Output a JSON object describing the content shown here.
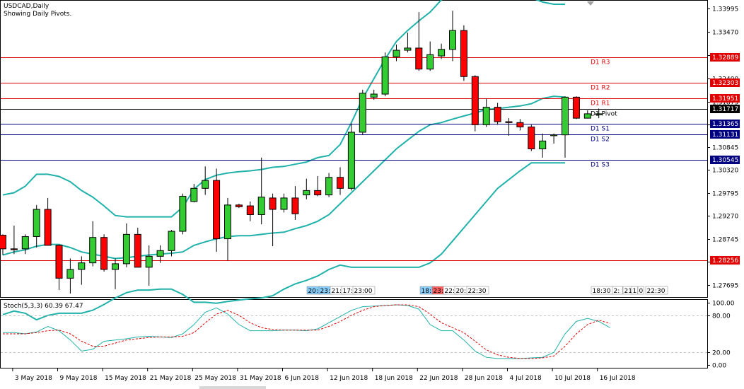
{
  "main": {
    "symbol": "USDCAD,Daily",
    "subtitle": "Showing Daily Pivots."
  },
  "stoch": {
    "label": "Stoch(5,3,3) 60.39 67.47",
    "k": 60.39,
    "d": 67.47
  },
  "colors": {
    "bull": "#33cc33",
    "bear": "#ff0000",
    "bands": "#20b2aa",
    "resistance": "#e00000",
    "support": "#000080",
    "pivot": "#000000",
    "stoch_main": "#20b2aa",
    "stoch_signal": "#e00000"
  },
  "session_tags": [
    {
      "text": "20:",
      "color": "#87cefa"
    },
    {
      "text": "23:",
      "color": "#87cefa"
    },
    {
      "text": "21:",
      "color": "#ffffff"
    },
    {
      "text": "17:",
      "color": "#ffffff"
    },
    {
      "text": "23:00",
      "color": "#ffffff"
    },
    {
      "text": "18:",
      "color": "#87cefa"
    },
    {
      "text": "23:",
      "color": "#ff6060"
    },
    {
      "text": "22:",
      "color": "#ffffff"
    },
    {
      "text": "20:",
      "color": "#ffffff"
    },
    {
      "text": "22:30",
      "color": "#ffffff"
    },
    {
      "text": "18:30",
      "color": "#ffffff"
    },
    {
      "text": "2:",
      "color": "#ffffff"
    },
    {
      "text": "21",
      "color": "#ffffff"
    },
    {
      "text": "1",
      "color": "#ffffff"
    },
    {
      "text": "0",
      "color": "#ffffff"
    },
    {
      "text": "22:30",
      "color": "#ffffff"
    }
  ],
  "chart_data": [
    {
      "type": "candlestick",
      "title": "USDCAD,Daily",
      "subtitle": "Showing Daily Pivots.",
      "ylim": [
        1.2742,
        1.3418
      ],
      "y_ticks": [
        1.33995,
        1.3347,
        1.3294,
        1.324,
        1.31875,
        1.3135,
        1.30845,
        1.3032,
        1.29795,
        1.2927,
        1.28745,
        1.2822,
        1.27695
      ],
      "x_labels": [
        "3 May 2018",
        "9 May 2018",
        "15 May 2018",
        "21 May 2018",
        "25 May 2018",
        "31 May 2018",
        "6 Jun 2018",
        "12 Jun 2018",
        "18 Jun 2018",
        "22 Jun 2018",
        "28 Jun 2018",
        "4 Jul 2018",
        "10 Jul 2018",
        "16 Jul 2018"
      ],
      "x_label_bars": [
        1,
        5,
        9,
        13,
        17,
        21,
        25,
        29,
        33,
        37,
        41,
        45,
        49,
        53
      ],
      "candles": [
        {
          "o": 1.2883,
          "h": 1.2885,
          "l": 1.2838,
          "c": 1.2852
        },
        {
          "o": 1.2852,
          "h": 1.2905,
          "l": 1.284,
          "c": 1.285
        },
        {
          "o": 1.2852,
          "h": 1.2885,
          "l": 1.284,
          "c": 1.288
        },
        {
          "o": 1.288,
          "h": 1.2952,
          "l": 1.2855,
          "c": 1.2942
        },
        {
          "o": 1.2942,
          "h": 1.2968,
          "l": 1.286,
          "c": 1.286
        },
        {
          "o": 1.286,
          "h": 1.2862,
          "l": 1.2758,
          "c": 1.2785
        },
        {
          "o": 1.2785,
          "h": 1.283,
          "l": 1.275,
          "c": 1.2805
        },
        {
          "o": 1.2805,
          "h": 1.2835,
          "l": 1.277,
          "c": 1.282
        },
        {
          "o": 1.282,
          "h": 1.2915,
          "l": 1.2812,
          "c": 1.2878
        },
        {
          "o": 1.2878,
          "h": 1.2885,
          "l": 1.28,
          "c": 1.2805
        },
        {
          "o": 1.2805,
          "h": 1.283,
          "l": 1.276,
          "c": 1.2818
        },
        {
          "o": 1.2818,
          "h": 1.291,
          "l": 1.281,
          "c": 1.2885
        },
        {
          "o": 1.2885,
          "h": 1.29,
          "l": 1.281,
          "c": 1.281
        },
        {
          "o": 1.281,
          "h": 1.286,
          "l": 1.2768,
          "c": 1.2835
        },
        {
          "o": 1.2835,
          "h": 1.286,
          "l": 1.282,
          "c": 1.2848
        },
        {
          "o": 1.2848,
          "h": 1.2895,
          "l": 1.2835,
          "c": 1.2892
        },
        {
          "o": 1.2892,
          "h": 1.2978,
          "l": 1.2885,
          "c": 1.2972
        },
        {
          "o": 1.296,
          "h": 1.3,
          "l": 1.2958,
          "c": 1.299
        },
        {
          "o": 1.299,
          "h": 1.304,
          "l": 1.2975,
          "c": 1.3008
        },
        {
          "o": 1.3008,
          "h": 1.3035,
          "l": 1.2845,
          "c": 1.2875
        },
        {
          "o": 1.2875,
          "h": 1.2968,
          "l": 1.2825,
          "c": 1.2952
        },
        {
          "o": 1.2952,
          "h": 1.2955,
          "l": 1.2945,
          "c": 1.2948
        },
        {
          "o": 1.295,
          "h": 1.296,
          "l": 1.2915,
          "c": 1.293
        },
        {
          "o": 1.293,
          "h": 1.306,
          "l": 1.2908,
          "c": 1.297
        },
        {
          "o": 1.2968,
          "h": 1.2978,
          "l": 1.2858,
          "c": 1.2942
        },
        {
          "o": 1.2942,
          "h": 1.2978,
          "l": 1.2935,
          "c": 1.2968
        },
        {
          "o": 1.2968,
          "h": 1.2995,
          "l": 1.2918,
          "c": 1.2932
        },
        {
          "o": 1.2975,
          "h": 1.3012,
          "l": 1.2965,
          "c": 1.2985
        },
        {
          "o": 1.2985,
          "h": 1.3018,
          "l": 1.2972,
          "c": 1.2975
        },
        {
          "o": 1.2975,
          "h": 1.3025,
          "l": 1.297,
          "c": 1.3015
        },
        {
          "o": 1.3015,
          "h": 1.3038,
          "l": 1.2975,
          "c": 1.299
        },
        {
          "o": 1.299,
          "h": 1.3138,
          "l": 1.2985,
          "c": 1.3118
        },
        {
          "o": 1.3118,
          "h": 1.3215,
          "l": 1.3112,
          "c": 1.3207
        },
        {
          "o": 1.3198,
          "h": 1.3215,
          "l": 1.3192,
          "c": 1.3205
        },
        {
          "o": 1.3205,
          "h": 1.33,
          "l": 1.32,
          "c": 1.329
        },
        {
          "o": 1.329,
          "h": 1.3318,
          "l": 1.328,
          "c": 1.3305
        },
        {
          "o": 1.3305,
          "h": 1.3345,
          "l": 1.33,
          "c": 1.331
        },
        {
          "o": 1.331,
          "h": 1.3392,
          "l": 1.3258,
          "c": 1.3262
        },
        {
          "o": 1.3262,
          "h": 1.3325,
          "l": 1.3258,
          "c": 1.3295
        },
        {
          "o": 1.3292,
          "h": 1.332,
          "l": 1.3285,
          "c": 1.3307
        },
        {
          "o": 1.3307,
          "h": 1.3395,
          "l": 1.328,
          "c": 1.335
        },
        {
          "o": 1.335,
          "h": 1.3362,
          "l": 1.3235,
          "c": 1.3245
        },
        {
          "o": 1.3245,
          "h": 1.3248,
          "l": 1.312,
          "c": 1.3135
        },
        {
          "o": 1.3135,
          "h": 1.3195,
          "l": 1.313,
          "c": 1.3175
        },
        {
          "o": 1.3175,
          "h": 1.3185,
          "l": 1.3135,
          "c": 1.3142
        },
        {
          "o": 1.3142,
          "h": 1.315,
          "l": 1.311,
          "c": 1.314
        },
        {
          "o": 1.314,
          "h": 1.3148,
          "l": 1.3122,
          "c": 1.313
        },
        {
          "o": 1.313,
          "h": 1.3135,
          "l": 1.3075,
          "c": 1.308
        },
        {
          "o": 1.308,
          "h": 1.3115,
          "l": 1.306,
          "c": 1.3098
        },
        {
          "o": 1.311,
          "h": 1.3115,
          "l": 1.3092,
          "c": 1.3112
        },
        {
          "o": 1.3112,
          "h": 1.32,
          "l": 1.306,
          "c": 1.3198
        },
        {
          "o": 1.3198,
          "h": 1.32,
          "l": 1.3148,
          "c": 1.315
        },
        {
          "o": 1.315,
          "h": 1.3168,
          "l": 1.315,
          "c": 1.316
        },
        {
          "o": 1.3158,
          "h": 1.3172,
          "l": 1.315,
          "c": 1.316
        }
      ],
      "bollinger": {
        "upper": [
          1.2975,
          1.298,
          1.2995,
          1.3022,
          1.3022,
          1.3017,
          1.3005,
          1.2985,
          1.297,
          1.295,
          1.2928,
          1.2925,
          1.2925,
          1.2925,
          1.2925,
          1.2925,
          1.2947,
          1.2988,
          1.301,
          1.302,
          1.3025,
          1.3028,
          1.303,
          1.3033,
          1.3038,
          1.304,
          1.3045,
          1.305,
          1.306,
          1.3065,
          1.309,
          1.314,
          1.3195,
          1.324,
          1.3285,
          1.3325,
          1.335,
          1.3372,
          1.3392,
          1.342,
          1.344,
          1.3445,
          1.3445,
          1.3445,
          1.3445,
          1.344,
          1.3435,
          1.3425,
          1.3415,
          1.341,
          1.341
        ],
        "middle": [
          1.2838,
          1.2845,
          1.285,
          1.2858,
          1.2862,
          1.2862,
          1.2855,
          1.2845,
          1.284,
          1.2835,
          1.283,
          1.2832,
          1.2835,
          1.2838,
          1.284,
          1.2842,
          1.2845,
          1.286,
          1.2868,
          1.2875,
          1.288,
          1.2882,
          1.2882,
          1.2885,
          1.2888,
          1.289,
          1.2898,
          1.2905,
          1.2915,
          1.293,
          1.2955,
          1.298,
          1.3005,
          1.303,
          1.3055,
          1.308,
          1.31,
          1.312,
          1.3135,
          1.314,
          1.3148,
          1.3155,
          1.3162,
          1.317,
          1.3172,
          1.3175,
          1.3178,
          1.3183,
          1.3195,
          1.32,
          1.3198
        ],
        "lower": [
          1.2702,
          1.271,
          1.2705,
          1.269,
          1.27,
          1.2705,
          1.2705,
          1.2705,
          1.2712,
          1.2725,
          1.274,
          1.2752,
          1.2758,
          1.2758,
          1.276,
          1.276,
          1.2748,
          1.273,
          1.273,
          1.2728,
          1.2732,
          1.2735,
          1.2738,
          1.274,
          1.2745,
          1.276,
          1.2772,
          1.278,
          1.279,
          1.2805,
          1.2815,
          1.281,
          1.281,
          1.281,
          1.281,
          1.281,
          1.281,
          1.281,
          1.282,
          1.284,
          1.287,
          1.29,
          1.293,
          1.296,
          1.299,
          1.301,
          1.303,
          1.3048,
          1.3048,
          1.3048,
          1.3048
        ]
      },
      "pivot_levels": [
        {
          "label": "D1 R3",
          "value": 1.32889,
          "tag": "1.32889",
          "kind": "resistance"
        },
        {
          "label": "D1 R2",
          "value": 1.32303,
          "tag": "1.32303",
          "kind": "resistance"
        },
        {
          "label": "D1 R1",
          "value": 1.31951,
          "tag": "1.31951",
          "kind": "resistance"
        },
        {
          "label": "D1 Pivot",
          "value": 1.31717,
          "tag": "1.31717",
          "kind": "pivot"
        },
        {
          "label": "D1 S1",
          "value": 1.31365,
          "tag": "1.31365",
          "kind": "support"
        },
        {
          "label": "D1 S2",
          "value": 1.31131,
          "tag": "1.31131",
          "kind": "support"
        },
        {
          "label": "D1 S3",
          "value": 1.30545,
          "tag": "1.30545",
          "kind": "support"
        },
        {
          "label": "",
          "value": 1.28256,
          "tag": "1.28256",
          "kind": "resistance"
        }
      ]
    },
    {
      "type": "line",
      "title": "Stoch(5,3,3) 60.39 67.47",
      "ylim": [
        -5,
        105
      ],
      "y_ticks": [
        100.0,
        80.0,
        20.0,
        0.0
      ],
      "levels": [
        80,
        20
      ],
      "series": [
        {
          "role": "main",
          "values": [
            52,
            52,
            50,
            53,
            62,
            55,
            40,
            22,
            25,
            38,
            40,
            42,
            45,
            46,
            45,
            44,
            50,
            65,
            85,
            92,
            82,
            65,
            55,
            55,
            55,
            56,
            56,
            55,
            58,
            68,
            78,
            88,
            94,
            95,
            96,
            97,
            96,
            90,
            65,
            55,
            55,
            40,
            22,
            12,
            10,
            10,
            10,
            11,
            12,
            20,
            50,
            70,
            75,
            70,
            60
          ]
        },
        {
          "role": "signal",
          "values": [
            50,
            50,
            50,
            52,
            55,
            56,
            50,
            38,
            30,
            30,
            35,
            40,
            42,
            44,
            45,
            45,
            46,
            52,
            68,
            82,
            88,
            80,
            68,
            60,
            57,
            56,
            56,
            56,
            56,
            62,
            70,
            80,
            88,
            94,
            96,
            97,
            97,
            94,
            82,
            68,
            60,
            52,
            38,
            24,
            16,
            12,
            10,
            10,
            11,
            14,
            30,
            50,
            65,
            72,
            67
          ]
        }
      ]
    }
  ]
}
